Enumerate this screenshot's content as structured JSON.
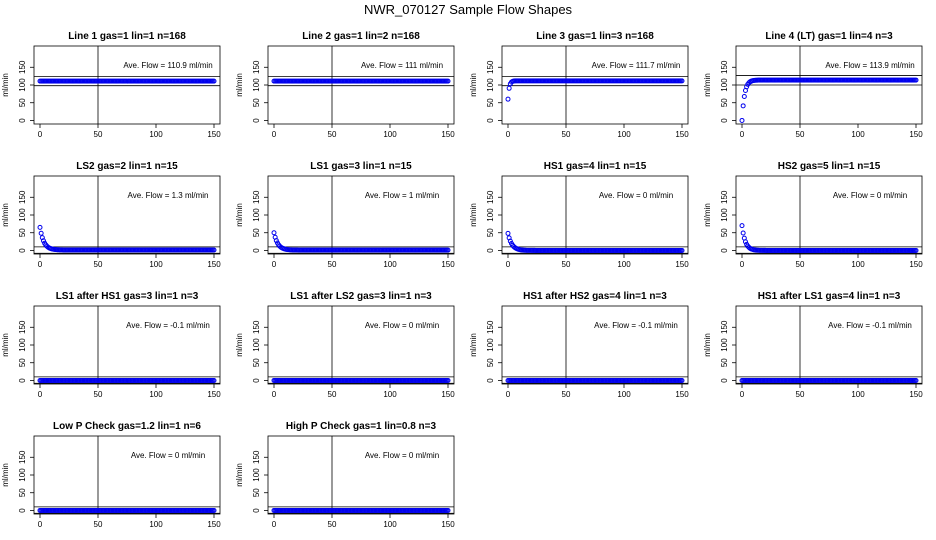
{
  "title": "NWR_070127  Sample Flow Shapes",
  "colors": {
    "points": "#0000ee",
    "lines": "#000000"
  },
  "chart_data": [
    {
      "type": "scatter",
      "title": "Line 1 gas=1 lin=1 n=168",
      "ylabel": "ml/min",
      "annotation": "Ave. Flow = 110.9  ml/min",
      "xlim": [
        0,
        150
      ],
      "ylim": [
        -10,
        210
      ],
      "xticks": [
        0,
        50,
        100,
        150
      ],
      "yticks": [
        0,
        50,
        100,
        150
      ],
      "vline": 50,
      "hlines": [
        98,
        124
      ],
      "baseline": 110.9,
      "decay": null
    },
    {
      "type": "scatter",
      "title": "Line 2 gas=1 lin=2 n=168",
      "ylabel": "ml/min",
      "annotation": "Ave. Flow = 111  ml/min",
      "xlim": [
        0,
        150
      ],
      "ylim": [
        -10,
        210
      ],
      "xticks": [
        0,
        50,
        100,
        150
      ],
      "yticks": [
        0,
        50,
        100,
        150
      ],
      "vline": 50,
      "hlines": [
        98,
        124
      ],
      "baseline": 111,
      "decay": null
    },
    {
      "type": "scatter",
      "title": "Line 3 gas=1 lin=3 n=168",
      "ylabel": "ml/min",
      "annotation": "Ave. Flow = 111.7  ml/min",
      "xlim": [
        0,
        150
      ],
      "ylim": [
        -10,
        210
      ],
      "xticks": [
        0,
        50,
        100,
        150
      ],
      "yticks": [
        0,
        50,
        100,
        150
      ],
      "vline": 50,
      "hlines": [
        98,
        124
      ],
      "baseline": 111.7,
      "decay": {
        "y0": 60,
        "k": 0.9
      }
    },
    {
      "type": "scatter",
      "title": "Line 4 (LT) gas=1 lin=4 n=3",
      "ylabel": "ml/min",
      "annotation": "Ave. Flow = 113.9  ml/min",
      "xlim": [
        0,
        150
      ],
      "ylim": [
        -10,
        210
      ],
      "xticks": [
        0,
        50,
        100,
        150
      ],
      "yticks": [
        0,
        50,
        100,
        150
      ],
      "vline": 50,
      "hlines": [
        100,
        127
      ],
      "baseline": 113.9,
      "decay": {
        "y0": 0,
        "k": 0.45
      }
    },
    {
      "type": "scatter",
      "title": "LS2 gas=2 lin=1 n=15",
      "ylabel": "ml/min",
      "annotation": "Ave. Flow = 1.3  ml/min",
      "xlim": [
        0,
        150
      ],
      "ylim": [
        -10,
        210
      ],
      "xticks": [
        0,
        50,
        100,
        150
      ],
      "yticks": [
        0,
        50,
        100,
        150
      ],
      "vline": 50,
      "hlines": [
        -8,
        10
      ],
      "baseline": 1.3,
      "decay": {
        "y0": 65,
        "k": 0.3
      }
    },
    {
      "type": "scatter",
      "title": "LS1 gas=3 lin=1 n=15",
      "ylabel": "ml/min",
      "annotation": "Ave. Flow = 1  ml/min",
      "xlim": [
        0,
        150
      ],
      "ylim": [
        -10,
        210
      ],
      "xticks": [
        0,
        50,
        100,
        150
      ],
      "yticks": [
        0,
        50,
        100,
        150
      ],
      "vline": 50,
      "hlines": [
        -8,
        10
      ],
      "baseline": 1,
      "decay": {
        "y0": 50,
        "k": 0.3
      }
    },
    {
      "type": "scatter",
      "title": "HS1 gas=4 lin=1 n=15",
      "ylabel": "ml/min",
      "annotation": "Ave. Flow = 0  ml/min",
      "xlim": [
        0,
        150
      ],
      "ylim": [
        -10,
        210
      ],
      "xticks": [
        0,
        50,
        100,
        150
      ],
      "yticks": [
        0,
        50,
        100,
        150
      ],
      "vline": 50,
      "hlines": [
        -8,
        10
      ],
      "baseline": 0,
      "decay": {
        "y0": 48,
        "k": 0.3
      }
    },
    {
      "type": "scatter",
      "title": "HS2 gas=5 lin=1 n=15",
      "ylabel": "ml/min",
      "annotation": "Ave. Flow = 0  ml/min",
      "xlim": [
        0,
        150
      ],
      "ylim": [
        -10,
        210
      ],
      "xticks": [
        0,
        50,
        100,
        150
      ],
      "yticks": [
        0,
        50,
        100,
        150
      ],
      "vline": 50,
      "hlines": [
        -8,
        10
      ],
      "baseline": 0,
      "decay": {
        "y0": 70,
        "k": 0.35
      }
    },
    {
      "type": "scatter",
      "title": "LS1 after HS1 gas=3 lin=1 n=3",
      "ylabel": "ml/min",
      "annotation": "Ave. Flow = -0.1  ml/min",
      "xlim": [
        0,
        150
      ],
      "ylim": [
        -10,
        210
      ],
      "xticks": [
        0,
        50,
        100,
        150
      ],
      "yticks": [
        0,
        50,
        100,
        150
      ],
      "vline": 50,
      "hlines": [
        -8,
        10
      ],
      "baseline": -0.1,
      "decay": null
    },
    {
      "type": "scatter",
      "title": "LS1 after LS2 gas=3 lin=1 n=3",
      "ylabel": "ml/min",
      "annotation": "Ave. Flow = 0  ml/min",
      "xlim": [
        0,
        150
      ],
      "ylim": [
        -10,
        210
      ],
      "xticks": [
        0,
        50,
        100,
        150
      ],
      "yticks": [
        0,
        50,
        100,
        150
      ],
      "vline": 50,
      "hlines": [
        -8,
        10
      ],
      "baseline": 0,
      "decay": null
    },
    {
      "type": "scatter",
      "title": "HS1 after HS2 gas=4 lin=1 n=3",
      "ylabel": "ml/min",
      "annotation": "Ave. Flow = -0.1  ml/min",
      "xlim": [
        0,
        150
      ],
      "ylim": [
        -10,
        210
      ],
      "xticks": [
        0,
        50,
        100,
        150
      ],
      "yticks": [
        0,
        50,
        100,
        150
      ],
      "vline": 50,
      "hlines": [
        -8,
        10
      ],
      "baseline": -0.1,
      "decay": null
    },
    {
      "type": "scatter",
      "title": "HS1 after LS1 gas=4 lin=1 n=3",
      "ylabel": "ml/min",
      "annotation": "Ave. Flow = -0.1  ml/min",
      "xlim": [
        0,
        150
      ],
      "ylim": [
        -10,
        210
      ],
      "xticks": [
        0,
        50,
        100,
        150
      ],
      "yticks": [
        0,
        50,
        100,
        150
      ],
      "vline": 50,
      "hlines": [
        -8,
        10
      ],
      "baseline": -0.1,
      "decay": null
    },
    {
      "type": "scatter",
      "title": "Low P Check gas=1.2 lin=1 n=6",
      "ylabel": "ml/min",
      "annotation": "Ave. Flow = 0  ml/min",
      "xlim": [
        0,
        150
      ],
      "ylim": [
        -10,
        210
      ],
      "xticks": [
        0,
        50,
        100,
        150
      ],
      "yticks": [
        0,
        50,
        100,
        150
      ],
      "vline": 50,
      "hlines": [
        -8,
        10
      ],
      "baseline": 0,
      "decay": null
    },
    {
      "type": "scatter",
      "title": "High P Check gas=1 lin=0.8 n=3",
      "ylabel": "ml/min",
      "annotation": "Ave. Flow = 0  ml/min",
      "xlim": [
        0,
        150
      ],
      "ylim": [
        -10,
        210
      ],
      "xticks": [
        0,
        50,
        100,
        150
      ],
      "yticks": [
        0,
        50,
        100,
        150
      ],
      "vline": 50,
      "hlines": [
        -8,
        10
      ],
      "baseline": 0,
      "decay": null
    }
  ]
}
